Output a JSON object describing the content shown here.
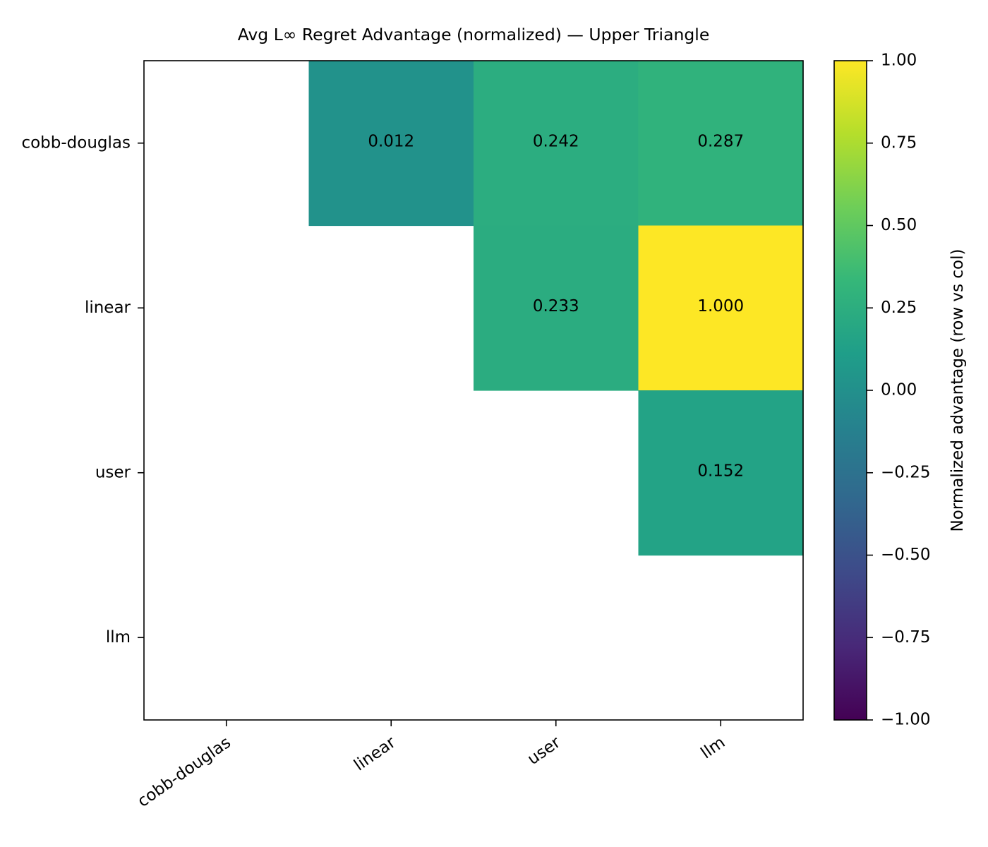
{
  "chart_data": {
    "type": "heatmap",
    "title": "Avg L∞ Regret Advantage (normalized) — Upper Triangle",
    "rows": [
      "cobb-douglas",
      "linear",
      "user",
      "llm"
    ],
    "columns": [
      "cobb-douglas",
      "linear",
      "user",
      "llm"
    ],
    "cells": [
      {
        "row": "cobb-douglas",
        "col": "linear",
        "value": 0.012,
        "label": "0.012"
      },
      {
        "row": "cobb-douglas",
        "col": "user",
        "value": 0.242,
        "label": "0.242"
      },
      {
        "row": "cobb-douglas",
        "col": "llm",
        "value": 0.287,
        "label": "0.287"
      },
      {
        "row": "linear",
        "col": "user",
        "value": 0.233,
        "label": "0.233"
      },
      {
        "row": "linear",
        "col": "llm",
        "value": 1.0,
        "label": "1.000"
      },
      {
        "row": "user",
        "col": "llm",
        "value": 0.152,
        "label": "0.152"
      }
    ],
    "colorscale": "viridis",
    "colorbar": {
      "label": "Normalized advantage (row vs col)",
      "range": [
        -1.0,
        1.0
      ],
      "ticks": [
        1.0,
        0.75,
        0.5,
        0.25,
        0.0,
        -0.25,
        -0.5,
        -0.75,
        -1.0
      ],
      "tick_labels": [
        "1.00",
        "0.75",
        "0.50",
        "0.25",
        "0.00",
        "−0.25",
        "−0.50",
        "−0.75",
        "−1.00"
      ]
    },
    "legend": "none",
    "grid": false
  }
}
